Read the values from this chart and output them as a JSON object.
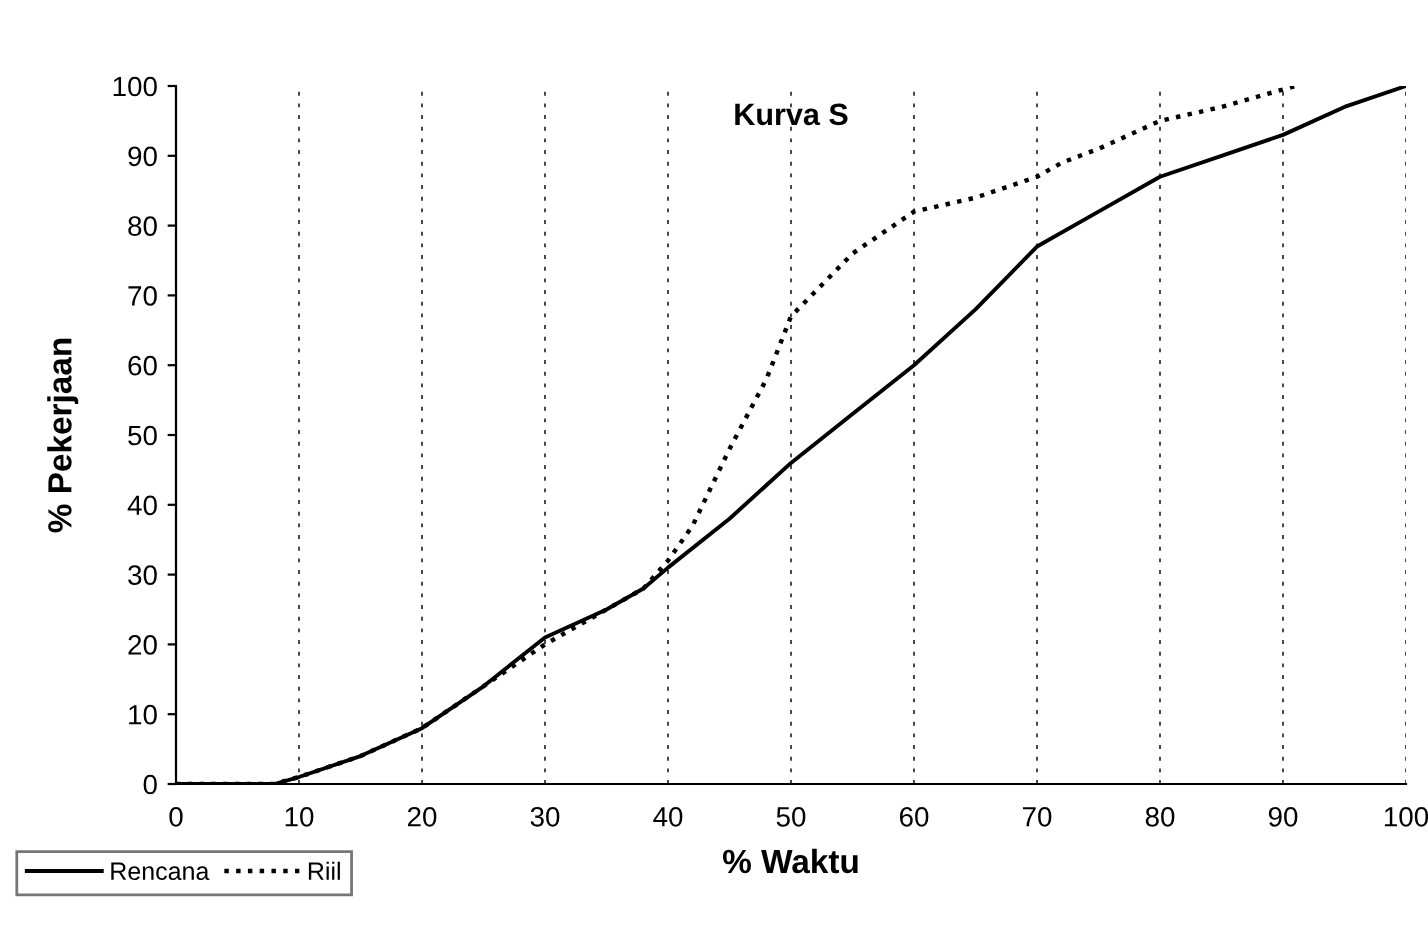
{
  "chart_data": {
    "type": "line",
    "title": "Kurva S",
    "xlabel": "% Waktu",
    "ylabel": "% Pekerjaan",
    "xlim": [
      0,
      100
    ],
    "xticks": [
      0,
      10,
      20,
      30,
      40,
      50,
      60,
      70,
      80,
      90,
      100
    ],
    "ylim": [
      0,
      100
    ],
    "yticks": [
      0,
      10,
      20,
      30,
      40,
      50,
      60,
      70,
      80,
      90,
      100
    ],
    "grid": "x",
    "legend": "bottom left",
    "marker": "none",
    "series": [
      {
        "name": "Rencana",
        "color": "#000000",
        "line_style": "solid",
        "x": [
          0,
          8,
          10,
          15,
          20,
          25,
          30,
          35,
          38,
          40,
          45,
          50,
          55,
          60,
          65,
          70,
          75,
          80,
          85,
          90,
          95,
          100
        ],
        "values": [
          0,
          0,
          1,
          4,
          8,
          14,
          21,
          25,
          28,
          31,
          38,
          46,
          53,
          60,
          68,
          77,
          82,
          87,
          90,
          93,
          97,
          100
        ]
      },
      {
        "name": "Riil",
        "color": "#000000",
        "line_style": "dotted",
        "x": [
          0,
          8,
          10,
          15,
          20,
          25,
          30,
          35,
          38,
          40,
          42,
          45,
          48,
          50,
          55,
          60,
          65,
          70,
          72,
          75,
          80,
          85,
          91
        ],
        "values": [
          0,
          0,
          1,
          4,
          8,
          14,
          20,
          25,
          28,
          32,
          37,
          48,
          58,
          67,
          76,
          82,
          84,
          87,
          89,
          91,
          95,
          97,
          100
        ]
      }
    ]
  }
}
